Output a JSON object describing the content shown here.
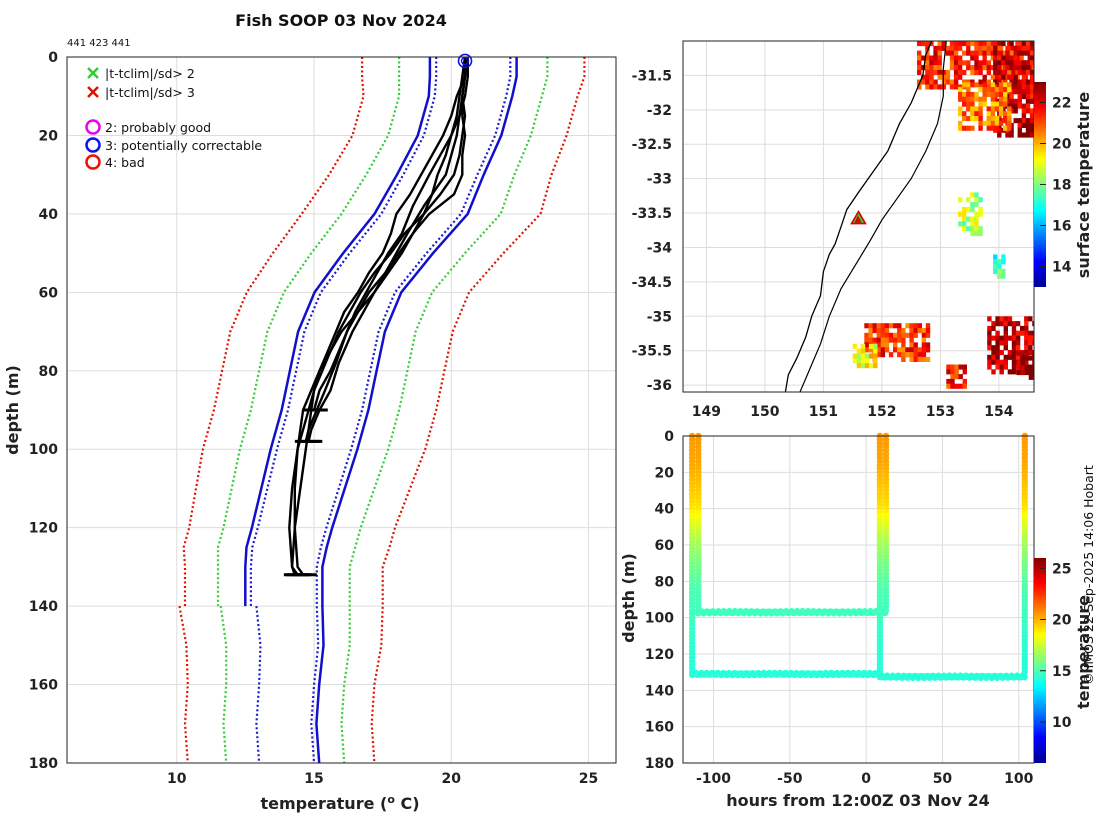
{
  "title": "Fish SOOP 03 Nov 2024",
  "id_text": "441 423 441",
  "credit": "© IMOS 22-Sep-2025 14:06 Hobart",
  "colors": {
    "clim_red": "#dd1100",
    "clim_green": "#33cc33",
    "clim_blue": "#1a1acc",
    "solid_blue": "#1010cc",
    "profile": "#000000",
    "coast": "#000000"
  },
  "legend": {
    "cross_green": "|t-tclim|/sd> 2",
    "cross_red": "|t-tclim|/sd> 3",
    "flag2": "2: probably good",
    "flag3": "3: potentially correctable",
    "flag4": "4: bad"
  },
  "chart_data": [
    {
      "type": "line",
      "name": "profile",
      "xlabel": "temperature (",
      "xlabel_sup": "o",
      "xlabel_end": " C)",
      "ylabel": "depth (m)",
      "xlim": [
        6,
        26
      ],
      "ylim": [
        0,
        180
      ],
      "xticks": [
        10,
        15,
        20,
        25
      ],
      "yticks": [
        0,
        20,
        40,
        60,
        80,
        100,
        120,
        140,
        160,
        180
      ],
      "climatology": {
        "depths": [
          0,
          5,
          10,
          20,
          30,
          40,
          50,
          60,
          70,
          80,
          90,
          100,
          110,
          120,
          125,
          130,
          140,
          150,
          160,
          170,
          180
        ],
        "mean": [
          20.8,
          20.8,
          20.7,
          20.3,
          19.6,
          18.9,
          17.7,
          16.6,
          16.0,
          15.7,
          15.4,
          15.0,
          14.6,
          14.2,
          14.0,
          13.9,
          13.9,
          14.0,
          13.9,
          13.8,
          13.9
        ],
        "sd": [
          1.35,
          1.35,
          1.3,
          1.3,
          1.35,
          1.45,
          1.4,
          1.35,
          1.35,
          1.35,
          1.35,
          1.35,
          1.3,
          1.25,
          1.25,
          1.2,
          1.2,
          1.15,
          1.1,
          1.1,
          1.1
        ],
        "solid_depth_max": 140
      },
      "profiles": [
        {
          "depths": [
            0,
            5,
            10,
            15,
            20,
            25,
            30,
            38,
            45,
            50,
            55,
            60,
            65,
            70,
            78,
            85,
            90,
            95,
            98
          ],
          "temps": [
            20.5,
            20.5,
            20.4,
            20.3,
            20.2,
            20.0,
            19.8,
            19.0,
            18.4,
            18.0,
            17.6,
            17.2,
            16.8,
            16.4,
            15.9,
            15.6,
            15.2,
            14.9,
            14.8
          ]
        },
        {
          "depths": [
            0,
            5,
            10,
            15,
            20,
            25,
            30,
            38,
            45,
            50,
            55,
            60,
            65,
            70,
            78,
            85,
            90,
            95,
            98
          ],
          "temps": [
            20.6,
            20.6,
            20.5,
            20.3,
            20.0,
            19.6,
            19.2,
            18.6,
            18.2,
            17.7,
            17.3,
            16.9,
            16.5,
            16.2,
            15.8,
            15.4,
            15.1,
            14.8,
            14.7
          ]
        },
        {
          "depths": [
            0,
            5,
            10,
            15,
            20,
            25,
            30,
            35,
            40,
            45,
            50,
            55,
            60,
            65,
            70,
            75,
            80,
            85,
            90
          ],
          "temps": [
            20.6,
            20.5,
            20.4,
            20.4,
            20.5,
            20.4,
            20.4,
            20.1,
            19.2,
            18.6,
            18.1,
            17.6,
            17.0,
            16.6,
            16.2,
            15.9,
            15.6,
            15.2,
            15.0
          ]
        },
        {
          "depths": [
            0,
            5,
            10,
            15,
            20,
            25,
            30,
            35,
            40,
            45,
            50,
            55,
            60,
            65,
            70,
            75,
            80,
            85,
            90,
            95,
            100,
            110,
            120,
            130,
            132
          ],
          "temps": [
            20.5,
            20.4,
            20.3,
            20.2,
            20.0,
            19.8,
            19.5,
            19.3,
            19.0,
            18.3,
            17.8,
            17.2,
            16.7,
            16.3,
            15.9,
            15.6,
            15.3,
            15.0,
            14.9,
            14.8,
            14.7,
            14.5,
            14.3,
            14.2,
            14.3
          ]
        },
        {
          "depths": [
            0,
            5,
            10,
            15,
            20,
            25,
            30,
            35,
            40,
            45,
            50,
            55,
            60,
            65,
            70,
            75,
            80,
            85,
            90,
            95,
            100,
            110,
            120,
            130,
            132
          ],
          "temps": [
            20.5,
            20.5,
            20.2,
            20.0,
            19.7,
            19.3,
            18.9,
            18.5,
            18.0,
            17.8,
            17.5,
            17.0,
            16.6,
            16.1,
            15.8,
            15.5,
            15.2,
            15.0,
            14.8,
            14.6,
            14.4,
            14.2,
            14.1,
            14.2,
            14.4
          ]
        },
        {
          "depths": [
            0,
            5,
            10,
            15,
            20,
            25,
            30,
            35,
            40,
            45,
            50,
            55,
            60,
            65,
            70,
            75,
            80,
            85,
            90,
            95,
            100,
            110,
            120,
            130,
            132
          ],
          "temps": [
            20.6,
            20.5,
            20.4,
            20.5,
            20.4,
            20.3,
            20.1,
            19.6,
            19.0,
            18.6,
            18.2,
            17.7,
            17.2,
            16.6,
            16.0,
            15.6,
            15.2,
            14.9,
            14.6,
            14.5,
            14.4,
            14.3,
            14.3,
            14.4,
            14.6
          ]
        }
      ],
      "qc_mark": {
        "temp": 20.5,
        "depth": 1
      }
    },
    {
      "type": "heatmap",
      "name": "map",
      "colorbar_label": "surface temperature",
      "xlim": [
        148.6,
        154.6
      ],
      "ylim": [
        -36.1,
        -31.0
      ],
      "xticks": [
        149,
        150,
        151,
        152,
        153,
        154
      ],
      "xtick_labels": [
        "149",
        "150",
        "151",
        "152",
        "153",
        "154"
      ],
      "yticks": [
        -31.5,
        -32,
        -32.5,
        -33,
        -33.5,
        -34,
        -34.5,
        -35,
        -35.5,
        -36
      ],
      "ytick_labels": [
        "-31.5",
        "-32",
        "-32.5",
        "-33",
        "-33.5",
        "-34",
        "-34.5",
        "-35",
        "-35.5",
        "-36"
      ],
      "colorbar_range": [
        13,
        23
      ],
      "colorbar_ticks": [
        14,
        16,
        18,
        20,
        22
      ],
      "station": {
        "lon": 151.6,
        "lat": -33.58
      },
      "coast": [
        [
          150.35,
          -36.1
        ],
        [
          150.4,
          -35.85
        ],
        [
          150.55,
          -35.6
        ],
        [
          150.7,
          -35.3
        ],
        [
          150.8,
          -35.0
        ],
        [
          150.95,
          -34.7
        ],
        [
          151.0,
          -34.35
        ],
        [
          151.1,
          -34.1
        ],
        [
          151.2,
          -33.95
        ],
        [
          151.3,
          -33.7
        ],
        [
          151.4,
          -33.45
        ],
        [
          151.6,
          -33.2
        ],
        [
          151.85,
          -32.9
        ],
        [
          152.1,
          -32.6
        ],
        [
          152.3,
          -32.2
        ],
        [
          152.5,
          -31.9
        ],
        [
          152.7,
          -31.5
        ],
        [
          152.75,
          -31.2
        ],
        [
          152.85,
          -31.0
        ]
      ],
      "shelf": [
        [
          150.6,
          -36.1
        ],
        [
          150.75,
          -35.8
        ],
        [
          150.95,
          -35.4
        ],
        [
          151.1,
          -35.0
        ],
        [
          151.3,
          -34.6
        ],
        [
          151.55,
          -34.25
        ],
        [
          151.8,
          -33.9
        ],
        [
          152.0,
          -33.6
        ],
        [
          152.25,
          -33.3
        ],
        [
          152.5,
          -33.0
        ],
        [
          152.75,
          -32.6
        ],
        [
          152.95,
          -32.2
        ],
        [
          153.05,
          -31.8
        ],
        [
          153.05,
          -31.4
        ],
        [
          153.1,
          -31.0
        ]
      ],
      "sst_patches": [
        {
          "lon0": 152.6,
          "lon1": 154.6,
          "lat0": -31.0,
          "lat1": -31.7,
          "t": 21.5
        },
        {
          "lon0": 153.9,
          "lon1": 154.6,
          "lat0": -31.0,
          "lat1": -32.4,
          "t": 22.3
        },
        {
          "lon0": 153.3,
          "lon1": 154.2,
          "lat0": -31.6,
          "lat1": -32.3,
          "t": 20.6
        },
        {
          "lon0": 153.3,
          "lon1": 153.7,
          "lat0": -33.2,
          "lat1": -33.8,
          "t": 18.5
        },
        {
          "lon0": 153.9,
          "lon1": 154.1,
          "lat0": -34.1,
          "lat1": -34.4,
          "t": 17.5
        },
        {
          "lon0": 151.7,
          "lon1": 152.8,
          "lat0": -35.1,
          "lat1": -35.6,
          "t": 21.3
        },
        {
          "lon0": 151.5,
          "lon1": 151.9,
          "lat0": -35.4,
          "lat1": -35.7,
          "t": 19.2
        },
        {
          "lon0": 153.1,
          "lon1": 153.4,
          "lat0": -35.7,
          "lat1": -36.0,
          "t": 21.5
        },
        {
          "lon0": 153.8,
          "lon1": 154.6,
          "lat0": -35.0,
          "lat1": -35.8,
          "t": 22.5
        },
        {
          "lon0": 154.3,
          "lon1": 154.6,
          "lat0": -35.5,
          "lat1": -35.9,
          "t": 23.0
        }
      ]
    },
    {
      "type": "scatter",
      "name": "time-depth",
      "xlabel": "hours from 12:00Z 03 Nov 24",
      "ylabel": "depth (m)",
      "colorbar_label": "temperature",
      "xlim": [
        -120,
        110
      ],
      "ylim": [
        0,
        180
      ],
      "xticks": [
        -100,
        -50,
        0,
        50,
        100
      ],
      "xtick_labels": [
        "-100",
        "-50",
        "0",
        "50",
        "100"
      ],
      "yticks": [
        0,
        20,
        40,
        60,
        80,
        100,
        120,
        140,
        160,
        180
      ],
      "colorbar_range": [
        6,
        26
      ],
      "colorbar_ticks": [
        10,
        15,
        20,
        25
      ],
      "casts": [
        {
          "hour": -114,
          "depth": 131
        },
        {
          "hour": -110,
          "depth": 97
        },
        {
          "hour": 9,
          "depth": 131
        },
        {
          "hour": 13,
          "depth": 97
        },
        {
          "hour": 104,
          "depth": 131
        }
      ],
      "tows": [
        {
          "h0": -114,
          "h1": 9,
          "depth": 131
        },
        {
          "h0": -110,
          "h1": 13,
          "depth": 97
        },
        {
          "h0": 9,
          "h1": 104,
          "depth": 132.5
        }
      ]
    }
  ]
}
